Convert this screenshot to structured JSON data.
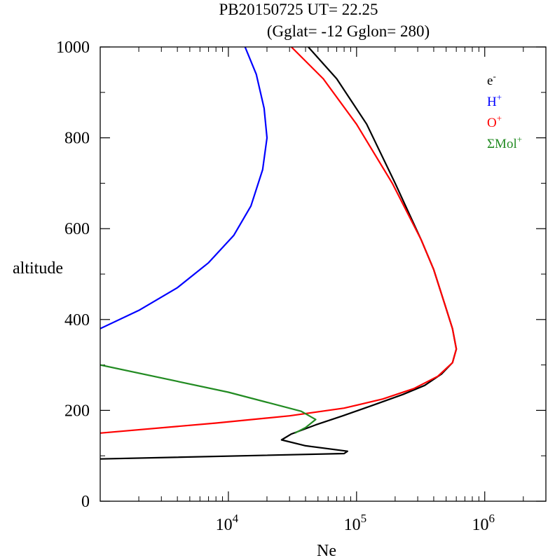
{
  "chart_data": {
    "type": "line",
    "title": "PB20150725   UT=  22.25",
    "subtitle": "(Gglat= -12   Gglon=  280)",
    "xlabel": "Ne",
    "ylabel": "altitude",
    "xscale": "log",
    "xlim": [
      1000,
      3000000
    ],
    "ylim": [
      0,
      1000
    ],
    "xticks": [
      {
        "value": 10000,
        "base": "10",
        "exp": "4"
      },
      {
        "value": 100000,
        "base": "10",
        "exp": "5"
      },
      {
        "value": 1000000,
        "base": "10",
        "exp": "6"
      }
    ],
    "yticks": [
      {
        "value": 0,
        "label": "0"
      },
      {
        "value": 200,
        "label": "200"
      },
      {
        "value": 400,
        "label": "400"
      },
      {
        "value": 600,
        "label": "600"
      },
      {
        "value": 800,
        "label": "800"
      },
      {
        "value": 1000,
        "label": "1000"
      }
    ],
    "legend_position": "top-right",
    "series": [
      {
        "name": "e-",
        "base": "e",
        "sup": "-",
        "color": "#000000",
        "points": [
          [
            1000,
            93
          ],
          [
            80000,
            105
          ],
          [
            85000,
            110
          ],
          [
            40000,
            122
          ],
          [
            26000,
            135
          ],
          [
            31000,
            148
          ],
          [
            48000,
            168
          ],
          [
            78000,
            188
          ],
          [
            130000,
            210
          ],
          [
            230000,
            235
          ],
          [
            340000,
            255
          ],
          [
            460000,
            280
          ],
          [
            560000,
            305
          ],
          [
            600000,
            335
          ],
          [
            560000,
            380
          ],
          [
            480000,
            440
          ],
          [
            400000,
            510
          ],
          [
            320000,
            575
          ],
          [
            200000,
            700
          ],
          [
            120000,
            830
          ],
          [
            70000,
            930
          ],
          [
            42000,
            1000
          ]
        ]
      },
      {
        "name": "H+",
        "base": "H",
        "sup": "+",
        "color": "#0000ff",
        "points": [
          [
            1000,
            380
          ],
          [
            2000,
            420
          ],
          [
            4000,
            470
          ],
          [
            7000,
            525
          ],
          [
            11000,
            585
          ],
          [
            15000,
            650
          ],
          [
            18500,
            730
          ],
          [
            20000,
            800
          ],
          [
            19000,
            865
          ],
          [
            16500,
            940
          ],
          [
            13500,
            1000
          ]
        ]
      },
      {
        "name": "O+",
        "base": "O",
        "sup": "+",
        "color": "#ff0000",
        "points": [
          [
            1000,
            150
          ],
          [
            8000,
            172
          ],
          [
            30000,
            188
          ],
          [
            80000,
            205
          ],
          [
            160000,
            225
          ],
          [
            280000,
            248
          ],
          [
            430000,
            275
          ],
          [
            560000,
            305
          ],
          [
            600000,
            335
          ],
          [
            560000,
            380
          ],
          [
            480000,
            440
          ],
          [
            400000,
            510
          ],
          [
            320000,
            575
          ],
          [
            190000,
            700
          ],
          [
            100000,
            830
          ],
          [
            55000,
            930
          ],
          [
            31000,
            1000
          ]
        ]
      },
      {
        "name": "ΣMol+",
        "base": "ΣMol",
        "sup": "+",
        "color": "#228b22",
        "points": [
          [
            1000,
            300
          ],
          [
            10000,
            240
          ],
          [
            37000,
            198
          ],
          [
            48000,
            180
          ],
          [
            40000,
            162
          ],
          [
            33000,
            150
          ]
        ]
      }
    ]
  }
}
